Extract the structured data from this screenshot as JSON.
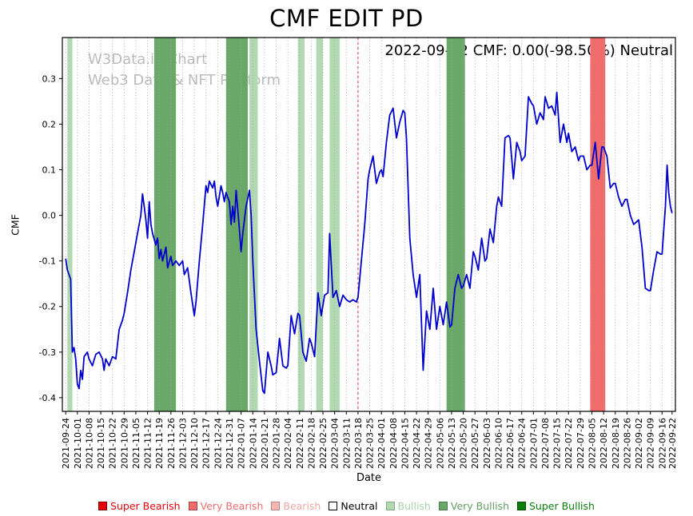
{
  "annotation": "2022-09-22 CMF: 0.00(-98.50%) Neutral",
  "watermark": {
    "line1": "W3Data.io Chart",
    "line2": "Web3 Data & NFT Platform"
  },
  "legend": {
    "items": [
      {
        "label": "Super Bearish",
        "color": "#e8000b",
        "text_color": "#e8000b",
        "border": "#7a0006"
      },
      {
        "label": "Very Bearish",
        "color": "#f06c6c",
        "text_color": "#ef6c6c",
        "border": "#a34545"
      },
      {
        "label": "Bearish",
        "color": "#f7b6b6",
        "text_color": "#f2a7a7",
        "border": "#b98585"
      },
      {
        "label": "Neutral",
        "color": "#ffffff",
        "text_color": "#000000",
        "border": "#000000"
      },
      {
        "label": "Bullish",
        "color": "#b3d9b3",
        "text_color": "#a9d2a9",
        "border": "#84a884"
      },
      {
        "label": "Very Bullish",
        "color": "#69a869",
        "text_color": "#5f9e5f",
        "border": "#4a7a4a"
      },
      {
        "label": "Super Bullish",
        "color": "#0a7d0a",
        "text_color": "#0a7d0a",
        "border": "#064f06"
      }
    ]
  },
  "chart_data": {
    "type": "line",
    "title": "CMF EDIT PD",
    "xlabel": "Date",
    "ylabel": "CMF",
    "line_color": "#0000cd",
    "grid": "vertical-dotted",
    "legend_position": "bottom",
    "ylim": [
      -0.43,
      0.39
    ],
    "y_ticks": [
      0.3,
      0.2,
      0.1,
      0.0,
      -0.1,
      -0.2,
      -0.3,
      -0.4
    ],
    "start_date": "2021-09-24",
    "x_tick_labels": [
      "2021-09-24",
      "2021-10-01",
      "2021-10-08",
      "2021-10-15",
      "2021-10-22",
      "2021-10-29",
      "2021-11-05",
      "2021-11-12",
      "2021-11-19",
      "2021-11-26",
      "2021-12-03",
      "2021-12-10",
      "2021-12-17",
      "2021-12-24",
      "2021-12-31",
      "2022-01-07",
      "2022-01-14",
      "2022-01-21",
      "2022-01-28",
      "2022-02-04",
      "2022-02-11",
      "2022-02-18",
      "2022-02-25",
      "2022-03-04",
      "2022-03-11",
      "2022-03-18",
      "2022-03-25",
      "2022-04-01",
      "2022-04-08",
      "2022-04-15",
      "2022-04-22",
      "2022-04-29",
      "2022-05-06",
      "2022-05-13",
      "2022-05-20",
      "2022-05-27",
      "2022-06-03",
      "2022-06-10",
      "2022-06-17",
      "2022-06-24",
      "2022-07-01",
      "2022-07-08",
      "2022-07-15",
      "2022-07-22",
      "2022-07-29",
      "2022-08-05",
      "2022-08-12",
      "2022-08-19",
      "2022-08-26",
      "2022-09-02",
      "2022-09-09",
      "2022-09-16",
      "2022-09-22"
    ],
    "bands": [
      {
        "start": "2021-09-25",
        "end": "2021-09-28",
        "level": "bullish"
      },
      {
        "start": "2021-11-16",
        "end": "2021-11-29",
        "level": "very_bullish"
      },
      {
        "start": "2021-12-29",
        "end": "2022-01-11",
        "level": "very_bullish"
      },
      {
        "start": "2022-01-12",
        "end": "2022-01-17",
        "level": "bullish"
      },
      {
        "start": "2022-02-10",
        "end": "2022-02-14",
        "level": "bullish"
      },
      {
        "start": "2022-02-21",
        "end": "2022-02-25",
        "level": "bullish"
      },
      {
        "start": "2022-03-01",
        "end": "2022-03-07",
        "level": "bullish"
      },
      {
        "start": "2022-05-10",
        "end": "2022-05-21",
        "level": "very_bullish"
      },
      {
        "start": "2022-08-04",
        "end": "2022-08-13",
        "level": "very_bearish"
      }
    ],
    "vlines": [
      {
        "date": "2022-03-18",
        "color": "#e05353",
        "label": "bearish-signal"
      }
    ],
    "band_colors": {
      "bullish": "#b3d9b3",
      "very_bullish": "#69a869",
      "very_bearish": "#f06c6c",
      "bearish": "#f7b6b6"
    },
    "points": [
      [
        0,
        -0.095
      ],
      [
        1,
        -0.12
      ],
      [
        3,
        -0.14
      ],
      [
        4,
        -0.3
      ],
      [
        5,
        -0.29
      ],
      [
        6,
        -0.315
      ],
      [
        7,
        -0.37
      ],
      [
        8,
        -0.38
      ],
      [
        9,
        -0.34
      ],
      [
        10,
        -0.36
      ],
      [
        11,
        -0.31
      ],
      [
        13,
        -0.3
      ],
      [
        14,
        -0.315
      ],
      [
        16,
        -0.33
      ],
      [
        18,
        -0.305
      ],
      [
        20,
        -0.3
      ],
      [
        22,
        -0.315
      ],
      [
        23,
        -0.34
      ],
      [
        24,
        -0.315
      ],
      [
        26,
        -0.33
      ],
      [
        28,
        -0.31
      ],
      [
        30,
        -0.315
      ],
      [
        32,
        -0.25
      ],
      [
        34,
        -0.23
      ],
      [
        35,
        -0.215
      ],
      [
        37,
        -0.17
      ],
      [
        39,
        -0.12
      ],
      [
        41,
        -0.08
      ],
      [
        43,
        -0.04
      ],
      [
        45,
        0.0
      ],
      [
        46,
        0.047
      ],
      [
        47,
        0.02
      ],
      [
        48,
        -0.01
      ],
      [
        49,
        -0.05
      ],
      [
        50,
        0.03
      ],
      [
        51,
        -0.02
      ],
      [
        52,
        -0.04
      ],
      [
        54,
        -0.065
      ],
      [
        55,
        -0.05
      ],
      [
        56,
        -0.095
      ],
      [
        57,
        -0.075
      ],
      [
        58,
        -0.1
      ],
      [
        60,
        -0.07
      ],
      [
        61,
        -0.115
      ],
      [
        63,
        -0.09
      ],
      [
        64,
        -0.11
      ],
      [
        66,
        -0.1
      ],
      [
        68,
        -0.11
      ],
      [
        70,
        -0.1
      ],
      [
        71,
        -0.13
      ],
      [
        73,
        -0.115
      ],
      [
        75,
        -0.17
      ],
      [
        77,
        -0.22
      ],
      [
        78,
        -0.19
      ],
      [
        80,
        -0.1
      ],
      [
        82,
        -0.02
      ],
      [
        84,
        0.065
      ],
      [
        85,
        0.05
      ],
      [
        86,
        0.075
      ],
      [
        88,
        0.06
      ],
      [
        89,
        0.075
      ],
      [
        90,
        0.04
      ],
      [
        91,
        0.02
      ],
      [
        93,
        0.065
      ],
      [
        94,
        0.05
      ],
      [
        95,
        0.03
      ],
      [
        96,
        0.05
      ],
      [
        98,
        0.03
      ],
      [
        99,
        -0.02
      ],
      [
        100,
        0.02
      ],
      [
        101,
        -0.015
      ],
      [
        102,
        0.055
      ],
      [
        104,
        -0.03
      ],
      [
        105,
        -0.08
      ],
      [
        106,
        -0.04
      ],
      [
        108,
        0.02
      ],
      [
        110,
        0.055
      ],
      [
        111,
        0.0
      ],
      [
        112,
        -0.1
      ],
      [
        114,
        -0.25
      ],
      [
        116,
        -0.32
      ],
      [
        118,
        -0.385
      ],
      [
        119,
        -0.39
      ],
      [
        121,
        -0.3
      ],
      [
        123,
        -0.33
      ],
      [
        124,
        -0.35
      ],
      [
        126,
        -0.345
      ],
      [
        128,
        -0.27
      ],
      [
        130,
        -0.33
      ],
      [
        132,
        -0.335
      ],
      [
        133,
        -0.33
      ],
      [
        135,
        -0.22
      ],
      [
        137,
        -0.26
      ],
      [
        139,
        -0.215
      ],
      [
        140,
        -0.22
      ],
      [
        142,
        -0.3
      ],
      [
        144,
        -0.32
      ],
      [
        146,
        -0.27
      ],
      [
        147,
        -0.28
      ],
      [
        149,
        -0.31
      ],
      [
        151,
        -0.17
      ],
      [
        153,
        -0.22
      ],
      [
        155,
        -0.175
      ],
      [
        157,
        -0.17
      ],
      [
        158,
        -0.04
      ],
      [
        160,
        -0.18
      ],
      [
        162,
        -0.165
      ],
      [
        164,
        -0.2
      ],
      [
        166,
        -0.175
      ],
      [
        168,
        -0.185
      ],
      [
        170,
        -0.19
      ],
      [
        172,
        -0.185
      ],
      [
        174,
        -0.19
      ],
      [
        175,
        -0.18
      ],
      [
        177,
        -0.1
      ],
      [
        179,
        -0.02
      ],
      [
        181,
        0.08
      ],
      [
        182,
        0.1
      ],
      [
        184,
        0.13
      ],
      [
        186,
        0.07
      ],
      [
        188,
        0.095
      ],
      [
        189,
        0.1
      ],
      [
        190,
        0.085
      ],
      [
        192,
        0.16
      ],
      [
        194,
        0.22
      ],
      [
        196,
        0.235
      ],
      [
        198,
        0.17
      ],
      [
        200,
        0.205
      ],
      [
        202,
        0.23
      ],
      [
        203,
        0.225
      ],
      [
        204,
        0.17
      ],
      [
        206,
        -0.05
      ],
      [
        208,
        -0.13
      ],
      [
        210,
        -0.18
      ],
      [
        212,
        -0.13
      ],
      [
        214,
        -0.34
      ],
      [
        216,
        -0.21
      ],
      [
        218,
        -0.25
      ],
      [
        220,
        -0.16
      ],
      [
        222,
        -0.25
      ],
      [
        224,
        -0.2
      ],
      [
        226,
        -0.24
      ],
      [
        228,
        -0.19
      ],
      [
        230,
        -0.245
      ],
      [
        231,
        -0.24
      ],
      [
        233,
        -0.16
      ],
      [
        235,
        -0.13
      ],
      [
        237,
        -0.16
      ],
      [
        238,
        -0.155
      ],
      [
        240,
        -0.13
      ],
      [
        242,
        -0.16
      ],
      [
        244,
        -0.08
      ],
      [
        245,
        -0.09
      ],
      [
        247,
        -0.12
      ],
      [
        249,
        -0.05
      ],
      [
        251,
        -0.1
      ],
      [
        252,
        -0.095
      ],
      [
        254,
        -0.03
      ],
      [
        256,
        -0.06
      ],
      [
        258,
        0.02
      ],
      [
        259,
        0.04
      ],
      [
        261,
        0.02
      ],
      [
        263,
        0.17
      ],
      [
        265,
        0.175
      ],
      [
        266,
        0.17
      ],
      [
        268,
        0.08
      ],
      [
        270,
        0.16
      ],
      [
        272,
        0.14
      ],
      [
        273,
        0.12
      ],
      [
        275,
        0.13
      ],
      [
        277,
        0.26
      ],
      [
        279,
        0.245
      ],
      [
        280,
        0.24
      ],
      [
        282,
        0.2
      ],
      [
        284,
        0.225
      ],
      [
        286,
        0.21
      ],
      [
        287,
        0.26
      ],
      [
        289,
        0.235
      ],
      [
        291,
        0.24
      ],
      [
        293,
        0.22
      ],
      [
        294,
        0.27
      ],
      [
        296,
        0.16
      ],
      [
        298,
        0.2
      ],
      [
        300,
        0.16
      ],
      [
        301,
        0.18
      ],
      [
        303,
        0.14
      ],
      [
        305,
        0.15
      ],
      [
        307,
        0.12
      ],
      [
        308,
        0.13
      ],
      [
        310,
        0.13
      ],
      [
        312,
        0.1
      ],
      [
        314,
        0.11
      ],
      [
        315,
        0.11
      ],
      [
        317,
        0.16
      ],
      [
        319,
        0.08
      ],
      [
        321,
        0.15
      ],
      [
        322,
        0.15
      ],
      [
        324,
        0.13
      ],
      [
        326,
        0.06
      ],
      [
        328,
        0.07
      ],
      [
        329,
        0.07
      ],
      [
        331,
        0.04
      ],
      [
        333,
        0.02
      ],
      [
        335,
        0.035
      ],
      [
        336,
        0.035
      ],
      [
        338,
        0.0
      ],
      [
        340,
        -0.02
      ],
      [
        343,
        -0.01
      ],
      [
        345,
        -0.07
      ],
      [
        347,
        -0.16
      ],
      [
        349,
        -0.165
      ],
      [
        350,
        -0.165
      ],
      [
        352,
        -0.12
      ],
      [
        354,
        -0.08
      ],
      [
        356,
        -0.085
      ],
      [
        357,
        -0.085
      ],
      [
        359,
        0.02
      ],
      [
        360,
        0.11
      ],
      [
        361,
        0.05
      ],
      [
        362,
        0.02
      ],
      [
        363,
        0.005
      ]
    ]
  }
}
